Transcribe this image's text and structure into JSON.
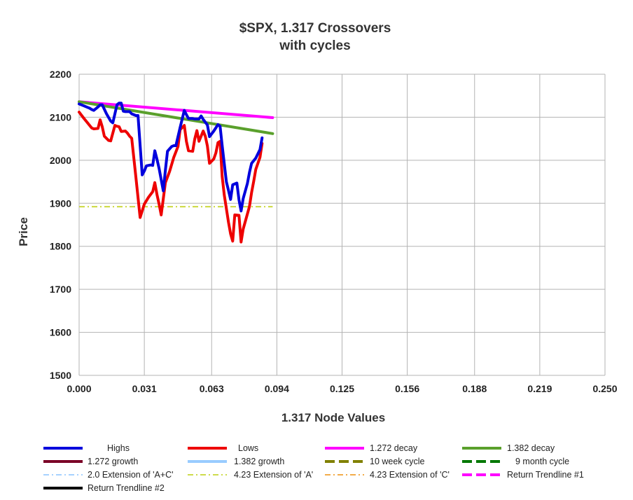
{
  "chart_data": {
    "type": "line",
    "title": "$SPX, 1.317 Crossovers",
    "subtitle": "with cycles",
    "xlabel": "1.317 Node Values",
    "ylabel": "Price",
    "xlim": [
      0,
      0.25
    ],
    "ylim": [
      1500,
      2200
    ],
    "x_ticks": [
      0.0,
      0.031,
      0.063,
      0.094,
      0.125,
      0.156,
      0.188,
      0.219,
      0.25
    ],
    "x_tick_labels": [
      "0.000",
      "0.031",
      "0.063",
      "0.094",
      "0.125",
      "0.156",
      "0.188",
      "0.219",
      "0.250"
    ],
    "y_ticks": [
      1500,
      1600,
      1700,
      1800,
      1900,
      2000,
      2100,
      2200
    ],
    "y_tick_labels": [
      "1500",
      "1600",
      "1700",
      "1800",
      "1900",
      "2000",
      "2100",
      "2200"
    ],
    "grid": true,
    "legend_position": "bottom",
    "series": [
      {
        "name": "Highs",
        "color": "#0000dd",
        "dash": "solid",
        "points": [
          [
            0.0,
            2131
          ],
          [
            0.002,
            2127
          ],
          [
            0.005,
            2121
          ],
          [
            0.006,
            2118
          ],
          [
            0.007,
            2116
          ],
          [
            0.009,
            2124
          ],
          [
            0.01,
            2129
          ],
          [
            0.011,
            2129
          ],
          [
            0.013,
            2108
          ],
          [
            0.015,
            2091
          ],
          [
            0.016,
            2087
          ],
          [
            0.018,
            2129
          ],
          [
            0.019,
            2133
          ],
          [
            0.02,
            2133
          ],
          [
            0.021,
            2114
          ],
          [
            0.022,
            2113
          ],
          [
            0.024,
            2113
          ],
          [
            0.025,
            2108
          ],
          [
            0.027,
            2104
          ],
          [
            0.028,
            2104
          ],
          [
            0.03,
            1966
          ],
          [
            0.031,
            1975
          ],
          [
            0.032,
            1987
          ],
          [
            0.034,
            1989
          ],
          [
            0.035,
            1988
          ],
          [
            0.036,
            2022
          ],
          [
            0.037,
            2003
          ],
          [
            0.038,
            1981
          ],
          [
            0.04,
            1929
          ],
          [
            0.041,
            1977
          ],
          [
            0.042,
            2021
          ],
          [
            0.044,
            2032
          ],
          [
            0.045,
            2034
          ],
          [
            0.046,
            2034
          ],
          [
            0.048,
            2076
          ],
          [
            0.05,
            2116
          ],
          [
            0.051,
            2106
          ],
          [
            0.052,
            2097
          ],
          [
            0.054,
            2097
          ],
          [
            0.055,
            2096
          ],
          [
            0.057,
            2096
          ],
          [
            0.058,
            2103
          ],
          [
            0.059,
            2095
          ],
          [
            0.061,
            2082
          ],
          [
            0.062,
            2055
          ],
          [
            0.064,
            2068
          ],
          [
            0.066,
            2083
          ],
          [
            0.067,
            2079
          ],
          [
            0.068,
            2034
          ],
          [
            0.07,
            1950
          ],
          [
            0.071,
            1930
          ],
          [
            0.072,
            1909
          ],
          [
            0.073,
            1943
          ],
          [
            0.075,
            1947
          ],
          [
            0.076,
            1908
          ],
          [
            0.077,
            1882
          ],
          [
            0.078,
            1911
          ],
          [
            0.08,
            1946
          ],
          [
            0.081,
            1972
          ],
          [
            0.082,
            1993
          ],
          [
            0.084,
            2005
          ],
          [
            0.086,
            2025
          ],
          [
            0.087,
            2052
          ]
        ]
      },
      {
        "name": "Lows",
        "color": "#ee0000",
        "dash": "solid",
        "points": [
          [
            0.0,
            2112
          ],
          [
            0.002,
            2099
          ],
          [
            0.004,
            2087
          ],
          [
            0.006,
            2075
          ],
          [
            0.007,
            2073
          ],
          [
            0.009,
            2074
          ],
          [
            0.01,
            2094
          ],
          [
            0.011,
            2078
          ],
          [
            0.012,
            2056
          ],
          [
            0.014,
            2046
          ],
          [
            0.015,
            2045
          ],
          [
            0.017,
            2081
          ],
          [
            0.018,
            2079
          ],
          [
            0.019,
            2078
          ],
          [
            0.02,
            2067
          ],
          [
            0.022,
            2068
          ],
          [
            0.023,
            2063
          ],
          [
            0.024,
            2056
          ],
          [
            0.025,
            2051
          ],
          [
            0.027,
            1960
          ],
          [
            0.029,
            1867
          ],
          [
            0.031,
            1898
          ],
          [
            0.033,
            1914
          ],
          [
            0.035,
            1927
          ],
          [
            0.036,
            1948
          ],
          [
            0.037,
            1921
          ],
          [
            0.038,
            1898
          ],
          [
            0.039,
            1873
          ],
          [
            0.041,
            1948
          ],
          [
            0.043,
            1974
          ],
          [
            0.045,
            2007
          ],
          [
            0.047,
            2032
          ],
          [
            0.048,
            2071
          ],
          [
            0.05,
            2081
          ],
          [
            0.051,
            2044
          ],
          [
            0.052,
            2022
          ],
          [
            0.054,
            2021
          ],
          [
            0.055,
            2050
          ],
          [
            0.056,
            2069
          ],
          [
            0.057,
            2044
          ],
          [
            0.059,
            2068
          ],
          [
            0.06,
            2056
          ],
          [
            0.061,
            2033
          ],
          [
            0.062,
            1993
          ],
          [
            0.064,
            2003
          ],
          [
            0.065,
            2017
          ],
          [
            0.066,
            2041
          ],
          [
            0.067,
            2044
          ],
          [
            0.068,
            1962
          ],
          [
            0.069,
            1919
          ],
          [
            0.071,
            1856
          ],
          [
            0.072,
            1829
          ],
          [
            0.073,
            1812
          ],
          [
            0.074,
            1873
          ],
          [
            0.076,
            1872
          ],
          [
            0.077,
            1810
          ],
          [
            0.078,
            1840
          ],
          [
            0.08,
            1875
          ],
          [
            0.081,
            1893
          ],
          [
            0.082,
            1925
          ],
          [
            0.083,
            1951
          ],
          [
            0.084,
            1979
          ],
          [
            0.086,
            2007
          ],
          [
            0.087,
            2039
          ]
        ]
      },
      {
        "name": "1.272 decay",
        "color": "#ff00ff",
        "dash": "solid",
        "points": [
          [
            0.0,
            2136
          ],
          [
            0.092,
            2099
          ]
        ]
      },
      {
        "name": "1.382 decay",
        "color": "#5aa02c",
        "dash": "solid",
        "points": [
          [
            0.0,
            2136
          ],
          [
            0.092,
            2062
          ]
        ]
      },
      {
        "name": "1.272 growth",
        "color": "#7a0026",
        "dash": "solid",
        "points": []
      },
      {
        "name": "1.382 growth",
        "color": "#99ccff",
        "dash": "solid",
        "points": []
      },
      {
        "name": "10 week cycle",
        "color": "#808000",
        "dash": "dashed",
        "points": []
      },
      {
        "name": "9 month cycle",
        "color": "#007700",
        "dash": "dashed",
        "points": []
      },
      {
        "name": "2.0 Extension of 'A+C'",
        "color": "#99ccff",
        "dash": "dashdot",
        "points": []
      },
      {
        "name": "4.23 Extension of 'A'",
        "color": "#c8d632",
        "dash": "dashdot",
        "points": [
          [
            0.0,
            1892
          ],
          [
            0.092,
            1892
          ]
        ]
      },
      {
        "name": "4.23 Extension of 'C'",
        "color": "#f0a030",
        "dash": "dashdot",
        "points": []
      },
      {
        "name": "Return Trendline #1",
        "color": "#ff00ff",
        "dash": "dashed",
        "points": []
      },
      {
        "name": "Return Trendline #2",
        "color": "#000000",
        "dash": "solid",
        "points": []
      }
    ]
  }
}
